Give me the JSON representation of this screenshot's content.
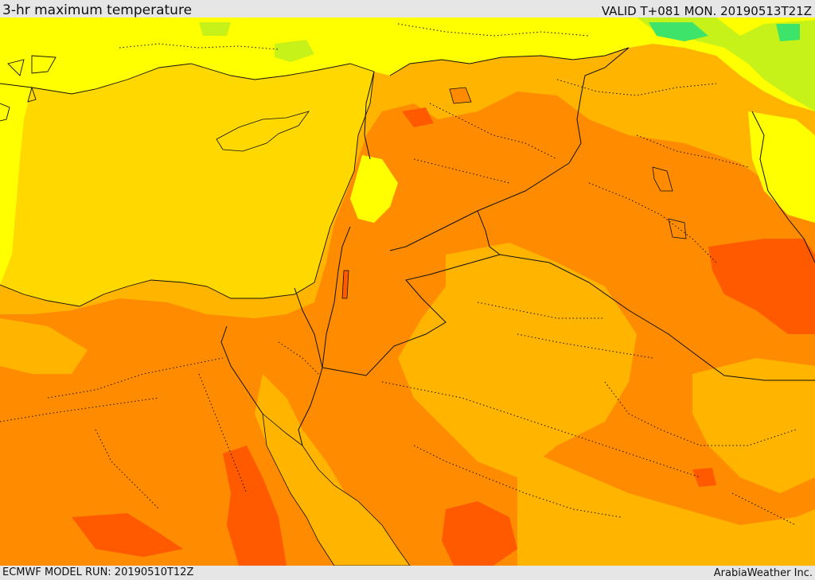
{
  "header": {
    "title": "3-hr maximum temperature",
    "valid_time": "VALID T+081 MON. 20190513T21Z"
  },
  "footer": {
    "model_run": "ECMWF MODEL RUN: 20190510T12Z",
    "credit": "ArabiaWeather Inc."
  },
  "map": {
    "region": "Eastern Mediterranean and Middle East",
    "colors": {
      "green": "#3ee36a",
      "yellow_green": "#c6f21a",
      "yellow": "#ffff00",
      "sea_yellow": "#ffd800",
      "light_orange": "#ffb400",
      "orange": "#ff8c00",
      "deep_orange": "#ff5a00",
      "border_line": "#111111"
    }
  }
}
